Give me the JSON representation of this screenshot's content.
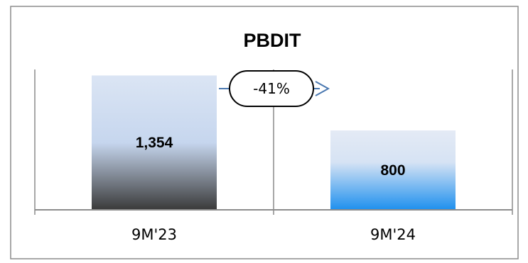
{
  "chart_data": {
    "type": "bar",
    "title": "PBDIT",
    "categories": [
      "9M'23",
      "9M'24"
    ],
    "values": [
      1354,
      800
    ],
    "value_labels": [
      "1,354",
      "800"
    ],
    "growth_label": "-41%",
    "ylim": [
      0,
      2000
    ],
    "grid": false,
    "legend": "none",
    "colors": {
      "bar1_top": "#c6d6ee",
      "bar1_bottom": "#3a3a3a",
      "bar2_top": "#dde6f4",
      "bar2_bottom": "#1e90ee",
      "axis": "#8c8c8c",
      "arrow": "#4a78b0",
      "frame": "#8c8c8c"
    }
  }
}
